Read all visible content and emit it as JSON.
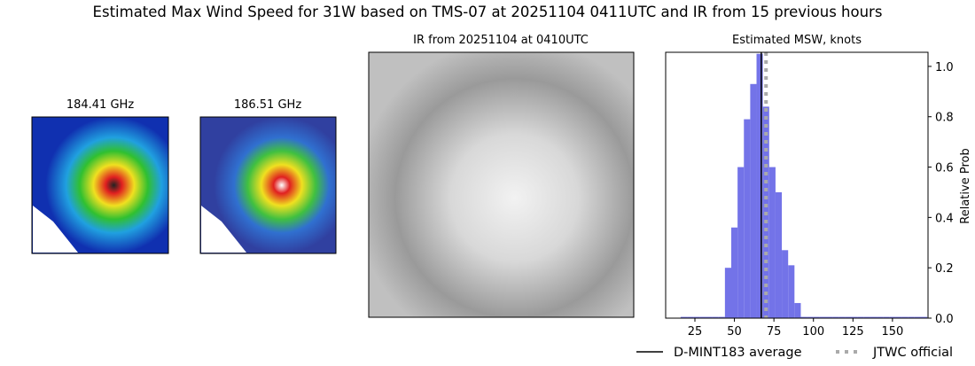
{
  "title": "Estimated Max Wind Speed for 31W based on TMS-07 at 20251104 0411UTC and IR from 15 previous hours",
  "panels": [
    {
      "title": "184.41 GHz"
    },
    {
      "title": "186.51 GHz"
    },
    {
      "title": "IR from 20251104 at 0410UTC"
    }
  ],
  "chart_data": {
    "type": "histogram",
    "title": "Estimated MSW, knots",
    "y_label": "Relative Prob",
    "color": "#7373e8",
    "bins": [
      16,
      20,
      24,
      28,
      32,
      36,
      40,
      44,
      48,
      52,
      56,
      60,
      64,
      68,
      72,
      76,
      80,
      84,
      88,
      92,
      96,
      100,
      104,
      108,
      112,
      116,
      120,
      124,
      128,
      132,
      136,
      140,
      144,
      148,
      152,
      156,
      160,
      164,
      168,
      172
    ],
    "values": [
      0.005,
      0.005,
      0.005,
      0.005,
      0.005,
      0.005,
      0.005,
      0.2,
      0.36,
      0.6,
      0.79,
      0.93,
      1.05,
      0.84,
      0.6,
      0.5,
      0.27,
      0.21,
      0.06,
      0.005,
      0.005,
      0.005,
      0.005,
      0.005,
      0.005,
      0.005,
      0.005,
      0.005,
      0.005,
      0.005,
      0.005,
      0.005,
      0.005,
      0.005,
      0.005,
      0.005,
      0.005,
      0.005,
      0.005
    ],
    "xlim": [
      6.5,
      172.5
    ],
    "xticks": [
      25,
      50,
      75,
      100,
      125,
      150
    ],
    "ylim": [
      0,
      1.056
    ],
    "yticks": [
      {
        "value": 0,
        "label": "0.0"
      },
      {
        "value": 0.2,
        "label": "0.2"
      },
      {
        "value": 0.4,
        "label": "0.4"
      },
      {
        "value": 0.6,
        "label": "0.6"
      },
      {
        "value": 0.8,
        "label": "0.8"
      },
      {
        "value": 1,
        "label": "1.0"
      }
    ],
    "lines": [
      {
        "name": "D-MINT183 average",
        "value": 67,
        "color": "#000000",
        "style": "solid"
      },
      {
        "name": "JTWC official",
        "value": 70,
        "color": "#aaaaaa",
        "style": "dotted"
      }
    ]
  }
}
